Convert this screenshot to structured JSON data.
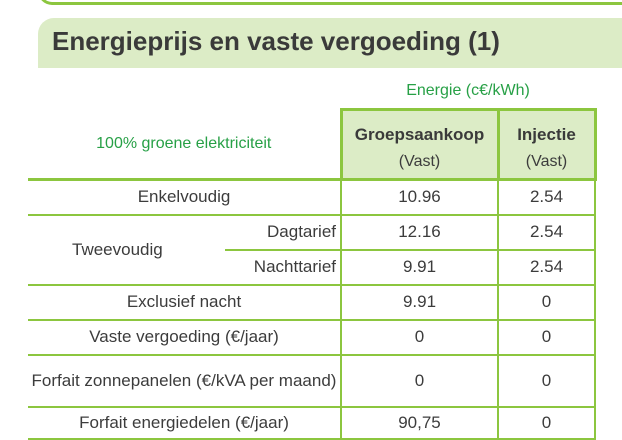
{
  "title": "Energieprijs en vaste vergoeding (1)",
  "energy_header": "Energie (c€/kWh)",
  "corner_label": "100% groene elektriciteit",
  "columns": [
    {
      "title": "Groepsaankoop",
      "sub": "(Vast)"
    },
    {
      "title": "Injectie",
      "sub": "(Vast)"
    }
  ],
  "rows": {
    "enkelvoudig": {
      "label": "Enkelvoudig",
      "values": [
        "10.96",
        "2.54"
      ]
    },
    "tweevoudig": {
      "label": "Tweevoudig"
    },
    "dagtarief": {
      "label": "Dagtarief",
      "values": [
        "12.16",
        "2.54"
      ]
    },
    "nachttarief": {
      "label": "Nachttarief",
      "values": [
        "9.91",
        "2.54"
      ]
    },
    "exclusief": {
      "label": "Exclusief nacht",
      "values": [
        "9.91",
        "0"
      ]
    },
    "vaste": {
      "label": "Vaste vergoeding (€/jaar)",
      "values": [
        "0",
        "0"
      ]
    },
    "forfait_zon": {
      "label": "Forfait zonnepanelen (€/kVA per maand)",
      "values": [
        "0",
        "0"
      ]
    },
    "forfait_energie": {
      "label": "Forfait energiedelen (€/jaar)",
      "values": [
        "90,75",
        "0"
      ]
    }
  }
}
